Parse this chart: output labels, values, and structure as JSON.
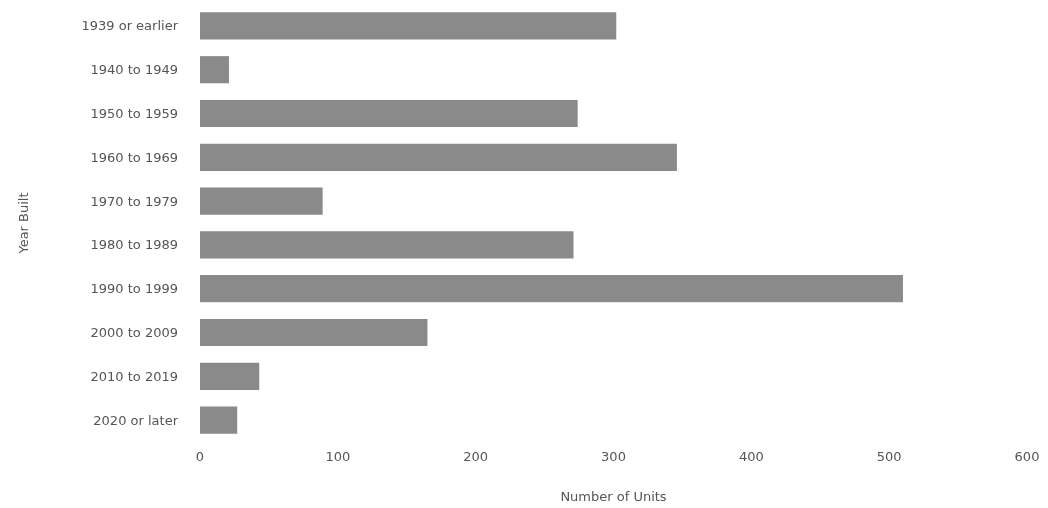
{
  "chart_data": {
    "type": "bar",
    "orientation": "horizontal",
    "xlabel": "Number of Units",
    "ylabel": "Year Built",
    "categories": [
      "1939 or earlier",
      "1940 to 1949",
      "1950 to 1959",
      "1960 to 1969",
      "1970 to 1979",
      "1980 to 1989",
      "1990 to 1999",
      "2000 to 2009",
      "2010 to 2019",
      "2020 or later"
    ],
    "values": [
      302,
      21,
      274,
      346,
      89,
      271,
      510,
      165,
      43,
      27
    ],
    "color": "#8a8a8a",
    "xlim": [
      0,
      600
    ],
    "xticks": [
      0,
      100,
      200,
      300,
      400,
      500,
      600
    ],
    "grid": false
  }
}
